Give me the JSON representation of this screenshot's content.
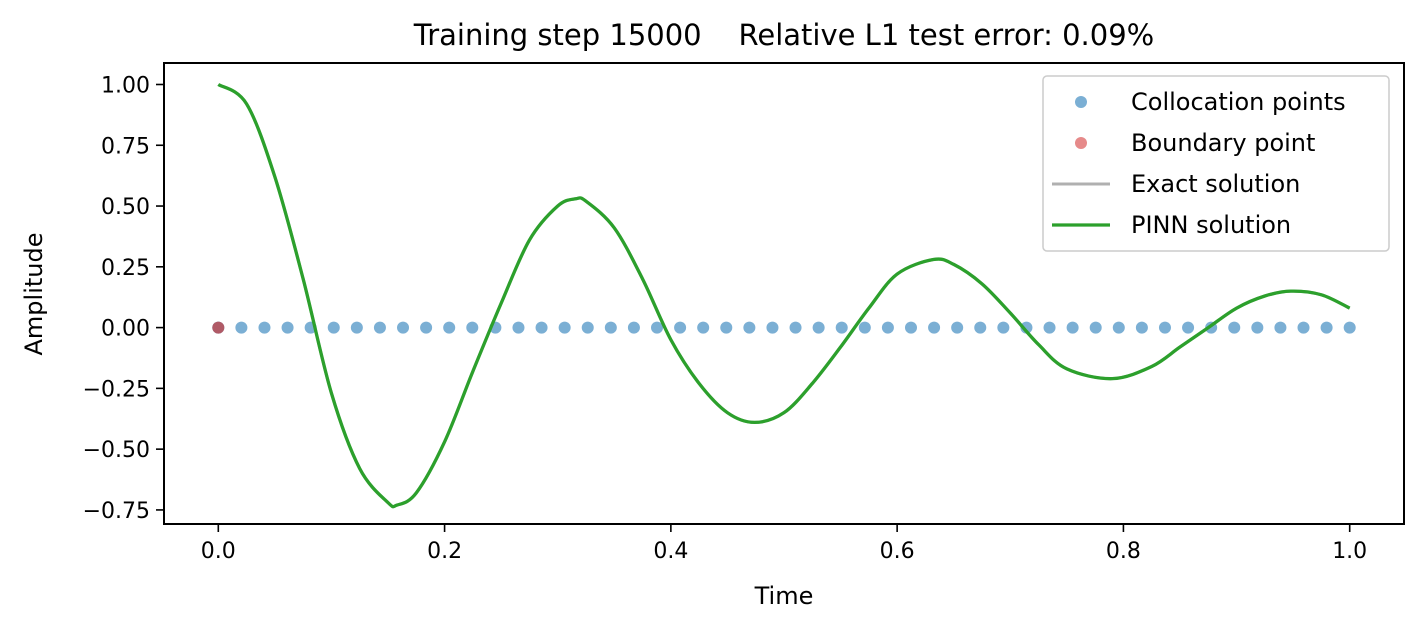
{
  "chart_data": {
    "type": "line",
    "title": "Training step 15000    Relative L1 test error: 0.09%",
    "xlabel": "Time",
    "ylabel": "Amplitude",
    "xlim": [
      -0.048,
      1.048
    ],
    "ylim": [
      -0.8079,
      1.0884
    ],
    "xticks": [
      0.0,
      0.2,
      0.4,
      0.6,
      0.8,
      1.0
    ],
    "xtick_labels": [
      "0.0",
      "0.2",
      "0.4",
      "0.6",
      "0.8",
      "1.0"
    ],
    "yticks": [
      1.0,
      0.75,
      0.5,
      0.25,
      0.0,
      -0.25,
      -0.5,
      -0.75
    ],
    "ytick_labels": [
      "1.00",
      "0.75",
      "0.50",
      "0.25",
      "0.00",
      "−0.25",
      "−0.50",
      "−0.75"
    ],
    "grid": false,
    "legend_position": "top-right",
    "colors": {
      "collocation": "#7bafd4",
      "boundary": "#e68a8a",
      "boundary_overlap": "#b05a66",
      "exact": "#b0b0b0",
      "pinn": "#2ca02c"
    },
    "series": [
      {
        "name": "Collocation points",
        "kind": "scatter",
        "x_start": 0.0,
        "x_end": 1.0,
        "n_points": 50,
        "y": 0.0
      },
      {
        "name": "Boundary point",
        "kind": "scatter",
        "x": [
          0.0
        ],
        "y": [
          0.0
        ]
      },
      {
        "name": "Exact solution",
        "kind": "line",
        "hidden_under": "PINN solution"
      },
      {
        "name": "PINN solution",
        "kind": "line",
        "x": [
          0.0,
          0.025,
          0.05,
          0.075,
          0.1,
          0.125,
          0.15,
          0.158,
          0.175,
          0.2,
          0.225,
          0.25,
          0.275,
          0.3,
          0.316,
          0.325,
          0.35,
          0.375,
          0.4,
          0.425,
          0.45,
          0.474,
          0.5,
          0.525,
          0.55,
          0.575,
          0.6,
          0.632,
          0.65,
          0.675,
          0.7,
          0.725,
          0.75,
          0.79,
          0.825,
          0.85,
          0.875,
          0.9,
          0.925,
          0.948,
          0.975,
          1.0
        ],
        "y": [
          1.0,
          0.92,
          0.62,
          0.2,
          -0.27,
          -0.58,
          -0.72,
          -0.73,
          -0.68,
          -0.47,
          -0.18,
          0.1,
          0.36,
          0.5,
          0.53,
          0.52,
          0.41,
          0.2,
          -0.05,
          -0.23,
          -0.35,
          -0.39,
          -0.35,
          -0.23,
          -0.08,
          0.08,
          0.22,
          0.28,
          0.26,
          0.18,
          0.06,
          -0.07,
          -0.17,
          -0.21,
          -0.16,
          -0.08,
          0.0,
          0.08,
          0.13,
          0.15,
          0.135,
          0.08
        ]
      }
    ]
  }
}
